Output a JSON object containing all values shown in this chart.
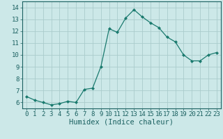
{
  "x": [
    0,
    1,
    2,
    3,
    4,
    5,
    6,
    7,
    8,
    9,
    10,
    11,
    12,
    13,
    14,
    15,
    16,
    17,
    18,
    19,
    20,
    21,
    22,
    23
  ],
  "y": [
    6.5,
    6.2,
    6.0,
    5.8,
    5.9,
    6.1,
    6.0,
    7.1,
    7.2,
    9.0,
    12.2,
    11.9,
    13.1,
    13.8,
    13.2,
    12.7,
    12.3,
    11.5,
    11.1,
    10.0,
    9.5,
    9.5,
    10.0,
    10.2
  ],
  "line_color": "#1a7a6e",
  "marker": "D",
  "marker_size": 2.0,
  "bg_color": "#cce8e8",
  "grid_color": "#aacccc",
  "xlabel": "Humidex (Indice chaleur)",
  "xlim": [
    -0.5,
    23.5
  ],
  "ylim": [
    5.5,
    14.5
  ],
  "yticks": [
    6,
    7,
    8,
    9,
    10,
    11,
    12,
    13,
    14
  ],
  "xticks": [
    0,
    1,
    2,
    3,
    4,
    5,
    6,
    7,
    8,
    9,
    10,
    11,
    12,
    13,
    14,
    15,
    16,
    17,
    18,
    19,
    20,
    21,
    22,
    23
  ],
  "tick_label_color": "#1a6060",
  "border_color": "#1a6060",
  "xlabel_fontsize": 7.5,
  "tick_fontsize": 6.5
}
